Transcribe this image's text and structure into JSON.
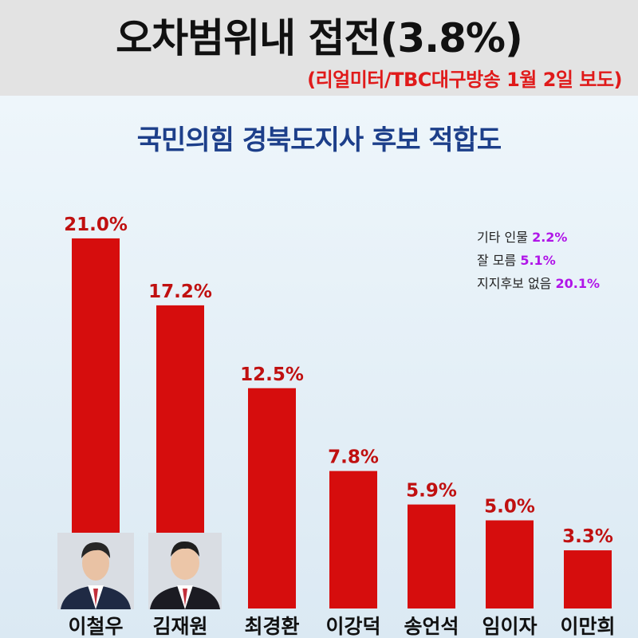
{
  "header": {
    "title": "오차범위내 접전(3.8%)",
    "source": "(리얼미터/TBC대구방송 1월 2일 보도)"
  },
  "chart_data": {
    "type": "bar",
    "title": "국민의힘 경북도지사 후보 적합도",
    "categories": [
      "이철우",
      "김재원",
      "최경환",
      "이강덕",
      "송언석",
      "임이자",
      "이만희"
    ],
    "values": [
      21.0,
      17.2,
      12.5,
      7.8,
      5.9,
      5.0,
      3.3
    ],
    "value_labels": [
      "21.0%",
      "17.2%",
      "12.5%",
      "7.8%",
      "5.9%",
      "5.0%",
      "3.3%"
    ],
    "bar_color": "#d60d0d",
    "grid": false,
    "legend": "none",
    "annotations": [
      {
        "label": "기타 인물",
        "value": "2.2%"
      },
      {
        "label": "잘 모름",
        "value": "5.1%"
      },
      {
        "label": "지지후보 없음",
        "value": "20.1%"
      }
    ]
  },
  "colors": {
    "title_accent": "#e01a1a",
    "subtitle": "#1d3f8a",
    "annotation_value": "#b015e8"
  }
}
